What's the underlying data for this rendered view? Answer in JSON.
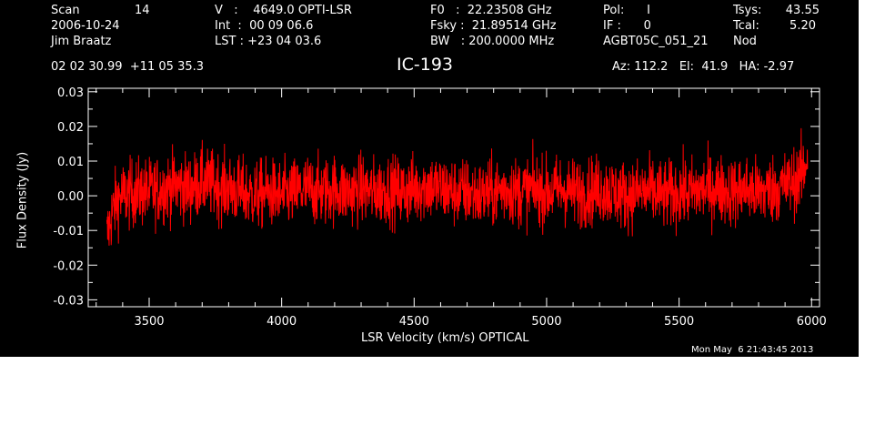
{
  "header": {
    "scan_label": "Scan",
    "scan_value": "14",
    "date": "2006-10-24",
    "observer": "Jim Braatz",
    "v_line": "V   :    4649.0 OPTI-LSR",
    "int_line": "Int  :  00 09 06.6",
    "lst_line": "LST : +23 04 03.6",
    "f0_line": "F0   :  22.23508 GHz",
    "fsky_line": "Fsky :  21.89514 GHz",
    "bw_line": "BW   : 200.0000 MHz",
    "pol_line": "Pol:      I",
    "if_line": "IF :      0",
    "proj_line": "AGBT05C_051_21",
    "tsys_label": "Tsys:",
    "tsys_value": "43.55",
    "tcal_label": "Tcal:",
    "tcal_value": "5.20",
    "nod": "Nod",
    "coords": "02 02 30.99  +11 05 35.3",
    "az_line": "Az: 112.2   El:  41.9   HA: -2.97"
  },
  "footer": {
    "timestamp": "Mon May  6 21:43:45 2013"
  },
  "colors": {
    "background": "#000000",
    "axes": "#ffffff",
    "series": "#ff0000"
  },
  "chart_data": {
    "type": "line",
    "title": "IC-193",
    "xlabel": "LSR Velocity (km/s) OPTICAL",
    "ylabel": "Flux Density (Jy)",
    "xlim": [
      3270,
      6030
    ],
    "ylim": [
      -0.032,
      0.031
    ],
    "xticks": [
      3500,
      4000,
      4500,
      5000,
      5500,
      6000
    ],
    "xtick_labels": [
      "3500",
      "4000",
      "4500",
      "5000",
      "5500",
      "6000"
    ],
    "yticks": [
      -0.03,
      -0.02,
      -0.01,
      0.0,
      0.01,
      0.02,
      0.03
    ],
    "ytick_labels": [
      "-0.03",
      "-0.02",
      "-0.01",
      "0.00",
      "0.01",
      "0.02",
      "0.03"
    ],
    "grid": false,
    "series": [
      {
        "x": [
          3340,
          3360,
          3380,
          3400,
          3450,
          3500,
          3550,
          3600,
          3650,
          3700,
          3750,
          3800,
          3850,
          3900,
          3950,
          4000,
          4050,
          4100,
          4150,
          4200,
          4250,
          4300,
          4350,
          4400,
          4450,
          4500,
          4550,
          4600,
          4650,
          4700,
          4750,
          4800,
          4850,
          4900,
          4950,
          5000,
          5050,
          5100,
          5150,
          5200,
          5250,
          5300,
          5350,
          5400,
          5450,
          5500,
          5550,
          5600,
          5650,
          5700,
          5750,
          5800,
          5850,
          5900,
          5930,
          5950,
          5970,
          5985
        ],
        "y": [
          -0.012,
          -0.005,
          -0.001,
          0.0,
          0.001,
          0.001,
          0.002,
          0.003,
          0.002,
          0.004,
          0.003,
          0.002,
          0.001,
          0.0,
          0.001,
          0.0,
          0.001,
          0.002,
          0.001,
          0.002,
          0.001,
          0.002,
          0.001,
          0.002,
          0.001,
          0.002,
          0.003,
          0.002,
          0.001,
          0.001,
          0.0,
          0.001,
          0.002,
          0.001,
          0.002,
          0.001,
          0.002,
          0.001,
          0.001,
          0.002,
          0.001,
          0.0,
          0.001,
          0.001,
          0.0,
          0.001,
          0.001,
          0.002,
          0.002,
          0.001,
          0.002,
          0.001,
          0.002,
          0.003,
          0.004,
          0.005,
          0.007,
          0.012
        ],
        "noise_rms": 0.005
      }
    ]
  }
}
